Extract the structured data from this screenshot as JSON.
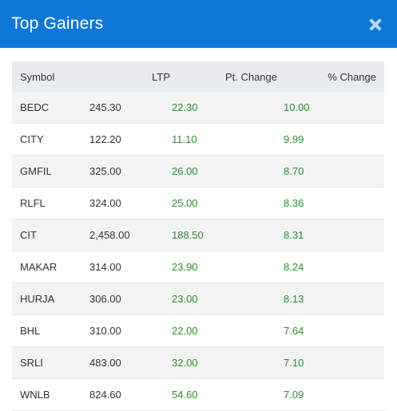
{
  "header": {
    "title": "Top Gainers"
  },
  "table": {
    "columns": [
      "Symbol",
      "LTP",
      "Pt. Change",
      "% Change"
    ],
    "rows": [
      {
        "symbol": "BEDC",
        "ltp": "245.30",
        "pt_change": "22.30",
        "pct_change": "10.00"
      },
      {
        "symbol": "CITY",
        "ltp": "122.20",
        "pt_change": "11.10",
        "pct_change": "9.99"
      },
      {
        "symbol": "GMFIL",
        "ltp": "325.00",
        "pt_change": "26.00",
        "pct_change": "8.70"
      },
      {
        "symbol": "RLFL",
        "ltp": "324.00",
        "pt_change": "25.00",
        "pct_change": "8.36"
      },
      {
        "symbol": "CIT",
        "ltp": "2,458.00",
        "pt_change": "188.50",
        "pct_change": "8.31"
      },
      {
        "symbol": "MAKAR",
        "ltp": "314.00",
        "pt_change": "23.90",
        "pct_change": "8.24"
      },
      {
        "symbol": "HURJA",
        "ltp": "306.00",
        "pt_change": "23.00",
        "pct_change": "8.13"
      },
      {
        "symbol": "BHL",
        "ltp": "310.00",
        "pt_change": "22.00",
        "pct_change": "7.64"
      },
      {
        "symbol": "SRLI",
        "ltp": "483.00",
        "pt_change": "32.00",
        "pct_change": "7.10"
      },
      {
        "symbol": "WNLB",
        "ltp": "824.60",
        "pt_change": "54.60",
        "pct_change": "7.09"
      }
    ]
  },
  "colors": {
    "header_bg": "#0f78d6",
    "positive": "#2e8b2e",
    "row_stripe": "#f3f3f3"
  },
  "icons": {
    "close": "close-icon"
  }
}
